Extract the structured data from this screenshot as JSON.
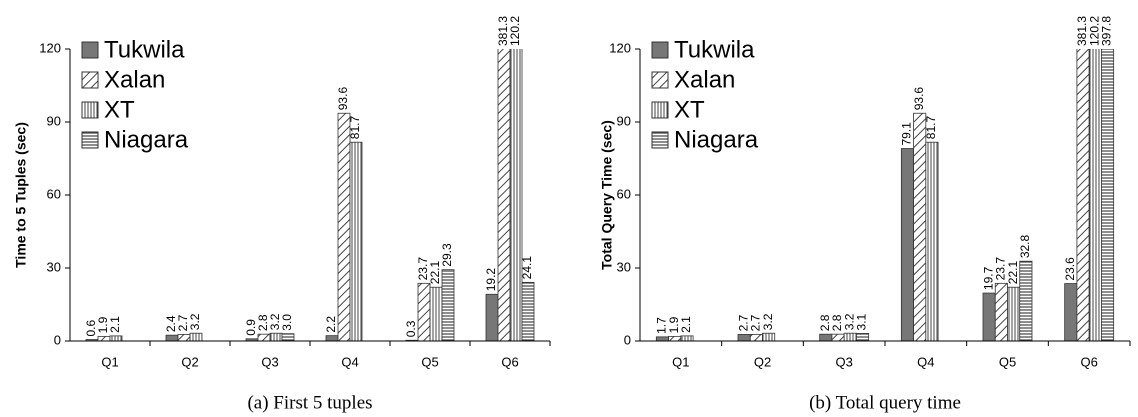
{
  "chart_data": [
    {
      "type": "bar",
      "ylabel": "Time to 5 Tuples (sec)",
      "caption": "(a) First 5 tuples",
      "categories": [
        "Q1",
        "Q2",
        "Q3",
        "Q4",
        "Q5",
        "Q6"
      ],
      "ylim": [
        0,
        120
      ],
      "yticks": [
        0,
        30,
        60,
        90,
        120
      ],
      "legend": "upper left",
      "series": [
        {
          "name": "Tukwila",
          "color": "#777777",
          "pattern": "solid",
          "values": [
            0.6,
            2.4,
            0.9,
            2.2,
            0.3,
            19.2
          ],
          "value_labels": [
            "0.6",
            "2.4",
            "0.9",
            "2.2",
            "0.3",
            "19.2"
          ]
        },
        {
          "name": "Xalan",
          "color": "#555555",
          "pattern": "diagonal",
          "values": [
            1.9,
            2.7,
            2.8,
            93.6,
            23.7,
            381.3
          ],
          "value_labels": [
            "1.9",
            "2.7",
            "2.8",
            "93.6",
            "23.7",
            "381.3"
          ]
        },
        {
          "name": "XT",
          "color": "#555555",
          "pattern": "vertical",
          "values": [
            2.1,
            3.2,
            3.2,
            81.7,
            22.1,
            120.2
          ],
          "value_labels": [
            "2.1",
            "3.2",
            "3.2",
            "81.7",
            "22.1",
            "120.2"
          ]
        },
        {
          "name": "Niagara",
          "color": "#555555",
          "pattern": "horizontal",
          "values": [
            null,
            null,
            3.0,
            null,
            29.3,
            24.1
          ],
          "value_labels": [
            null,
            null,
            "3.0",
            null,
            "29.3",
            "24.1"
          ]
        }
      ]
    },
    {
      "type": "bar",
      "ylabel": "Total Query Time (sec)",
      "caption": "(b) Total query time",
      "categories": [
        "Q1",
        "Q2",
        "Q3",
        "Q4",
        "Q5",
        "Q6"
      ],
      "ylim": [
        0,
        120
      ],
      "yticks": [
        0,
        30,
        60,
        90,
        120
      ],
      "legend": "upper left",
      "series": [
        {
          "name": "Tukwila",
          "color": "#777777",
          "pattern": "solid",
          "values": [
            1.7,
            2.7,
            2.8,
            79.1,
            19.7,
            23.6
          ],
          "value_labels": [
            "1.7",
            "2.7",
            "2.8",
            "79.1",
            "19.7",
            "23.6"
          ]
        },
        {
          "name": "Xalan",
          "color": "#555555",
          "pattern": "diagonal",
          "values": [
            1.9,
            2.7,
            2.8,
            93.6,
            23.7,
            381.3
          ],
          "value_labels": [
            "1.9",
            "2.7",
            "2.8",
            "93.6",
            "23.7",
            "381.3"
          ]
        },
        {
          "name": "XT",
          "color": "#555555",
          "pattern": "vertical",
          "values": [
            2.1,
            3.2,
            3.2,
            81.7,
            22.1,
            120.2
          ],
          "value_labels": [
            "2.1",
            "3.2",
            "3.2",
            "81.7",
            "22.1",
            "120.2"
          ]
        },
        {
          "name": "Niagara",
          "color": "#555555",
          "pattern": "horizontal",
          "values": [
            null,
            null,
            3.1,
            null,
            32.8,
            397.8
          ],
          "value_labels": [
            null,
            null,
            "3.1",
            null,
            "32.8",
            "397.8"
          ]
        }
      ]
    }
  ]
}
